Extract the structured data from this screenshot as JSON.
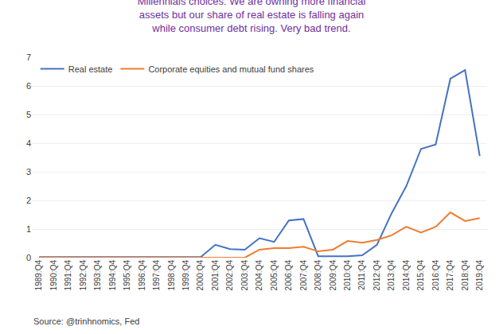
{
  "chart_data": {
    "type": "line",
    "title": "Millennials choices: We are owning more financial\nassets but our share of real estate is falling again\nwhile consumer debt rising. Very bad trend.",
    "annotations": [
      "Source: @trinhnomics, Fed"
    ],
    "categories": [
      "1989:Q4",
      "1990:Q4",
      "1991:Q4",
      "1992:Q4",
      "1993:Q4",
      "1994:Q4",
      "1995:Q4",
      "1996:Q4",
      "1997:Q4",
      "1998:Q4",
      "1999:Q4",
      "2000:Q4",
      "2001:Q4",
      "2002:Q4",
      "2003:Q4",
      "2004:Q4",
      "2005:Q4",
      "2006:Q4",
      "2007:Q4",
      "2008:Q4",
      "2009:Q4",
      "2010:Q4",
      "2011:Q4",
      "2012:Q4",
      "2013:Q4",
      "2014:Q4",
      "2015:Q4",
      "2016:Q4",
      "2017:Q4",
      "2018:Q4",
      "2019:Q4"
    ],
    "series": [
      {
        "name": "Real estate",
        "color": "#4472c4",
        "values": [
          0.02,
          0.02,
          0.02,
          0.02,
          0.02,
          0.02,
          0.02,
          0.02,
          0.02,
          0.02,
          0.02,
          0.02,
          0.45,
          0.3,
          0.28,
          0.68,
          0.55,
          1.3,
          1.35,
          0.05,
          0.05,
          0.05,
          0.08,
          0.45,
          1.55,
          2.5,
          3.8,
          3.95,
          6.25,
          6.55,
          3.55
        ]
      },
      {
        "name": "Corporate equities and mutual fund shares",
        "color": "#ed7d31",
        "values": [
          0.0,
          0.0,
          0.0,
          0.0,
          0.0,
          0.0,
          0.0,
          0.0,
          0.0,
          0.0,
          0.0,
          0.0,
          0.0,
          0.0,
          0.0,
          0.28,
          0.33,
          0.33,
          0.38,
          0.22,
          0.28,
          0.58,
          0.52,
          0.62,
          0.78,
          1.08,
          0.88,
          1.08,
          1.58,
          1.28,
          1.38
        ]
      }
    ],
    "ylim": [
      0,
      7
    ],
    "yticks": [
      0,
      1,
      2,
      3,
      4,
      5,
      6,
      7
    ],
    "grid": true,
    "legend": "upper left"
  }
}
